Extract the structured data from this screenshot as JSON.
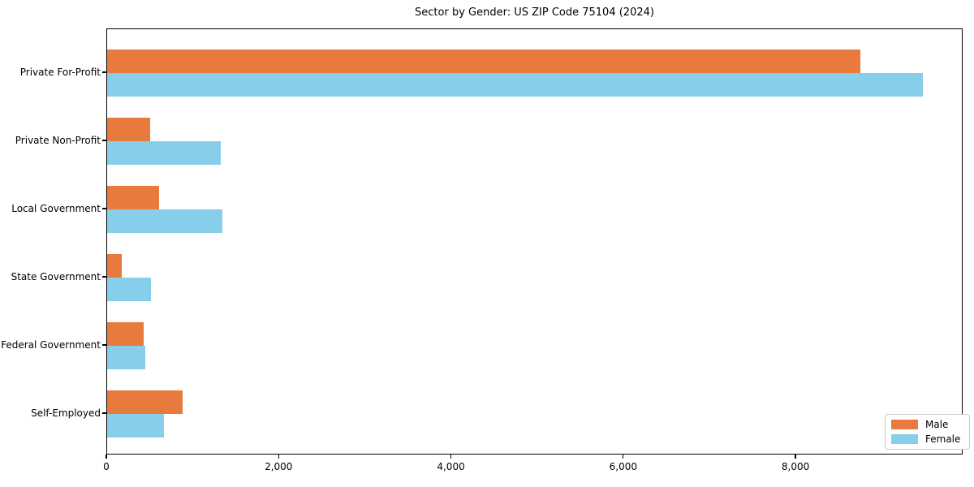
{
  "title": "Sector by Gender: US ZIP Code 75104 (2024)",
  "colors": {
    "male": "#E87A3D",
    "female": "#87CEEB",
    "spine": "#000000",
    "legend_border": "#C9C9C9",
    "background": "#FFFFFF",
    "text": "#000000"
  },
  "legend": {
    "position": "lower-right",
    "entries": [
      "Male",
      "Female"
    ]
  },
  "chart_data": {
    "type": "bar",
    "orientation": "horizontal",
    "title": "Sector by Gender: US ZIP Code 75104 (2024)",
    "categories": [
      "Private For-Profit",
      "Private Non-Profit",
      "Local Government",
      "State Government",
      "Federal Government",
      "Self-Employed"
    ],
    "series": [
      {
        "name": "Male",
        "color": "#E87A3D",
        "values": [
          8740,
          500,
          600,
          170,
          420,
          880
        ]
      },
      {
        "name": "Female",
        "color": "#87CEEB",
        "values": [
          9470,
          1320,
          1340,
          510,
          440,
          660
        ]
      }
    ],
    "xlabel": "",
    "ylabel": "",
    "xlim": [
      0,
      9940
    ],
    "xticks": [
      0,
      2000,
      4000,
      6000,
      8000
    ],
    "xtick_labels": [
      "0",
      "2,000",
      "4,000",
      "6,000",
      "8,000"
    ],
    "grid": false,
    "legend_position": "lower right"
  }
}
